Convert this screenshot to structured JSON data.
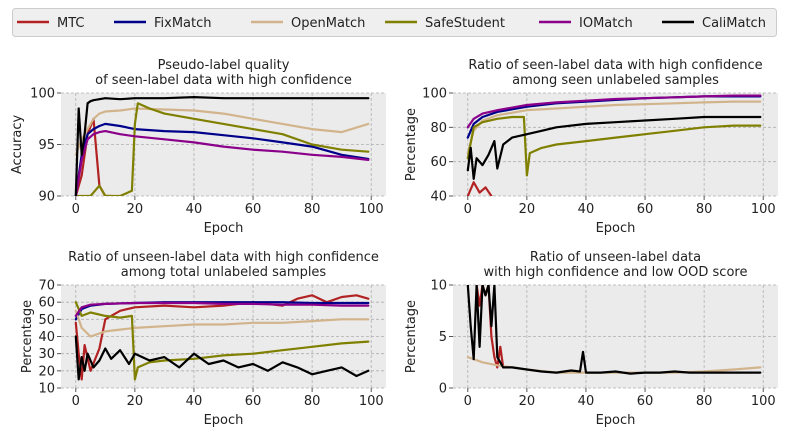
{
  "legend": [
    {
      "name": "MTC",
      "color": "#b22222"
    },
    {
      "name": "FixMatch",
      "color": "#00008b"
    },
    {
      "name": "OpenMatch",
      "color": "#d2b48c"
    },
    {
      "name": "SafeStudent",
      "color": "#808000"
    },
    {
      "name": "IOMatch",
      "color": "#8b008b"
    },
    {
      "name": "CaliMatch",
      "color": "#000000"
    }
  ],
  "chart_data": [
    {
      "type": "line",
      "title": "Pseudo-label quality\nof seen-label data with high confidence",
      "xlabel": "Epoch",
      "ylabel": "Accuracy",
      "xlim": [
        -5,
        105
      ],
      "ylim": [
        90,
        100
      ],
      "xticks": [
        0,
        20,
        40,
        60,
        80,
        100
      ],
      "yticks": [
        90,
        95,
        100
      ],
      "grid": true,
      "series": [
        {
          "name": "MTC",
          "x": [
            0,
            2,
            4,
            6,
            8,
            10,
            12
          ],
          "y": [
            90,
            92,
            96,
            97.5,
            91,
            90,
            90
          ]
        },
        {
          "name": "FixMatch",
          "x": [
            0,
            2,
            4,
            6,
            8,
            10,
            15,
            20,
            30,
            40,
            50,
            60,
            70,
            80,
            90,
            99
          ],
          "y": [
            90,
            94,
            96,
            96.5,
            96.8,
            97,
            96.8,
            96.5,
            96.3,
            96.2,
            95.9,
            95.6,
            95.2,
            94.8,
            94,
            93.6
          ]
        },
        {
          "name": "OpenMatch",
          "x": [
            0,
            2,
            4,
            6,
            8,
            10,
            15,
            20,
            30,
            40,
            50,
            60,
            70,
            80,
            90,
            99
          ],
          "y": [
            94,
            95.5,
            96.5,
            97.5,
            98,
            98.2,
            98.3,
            98.5,
            98.4,
            98.3,
            98,
            97.5,
            97,
            96.5,
            96.2,
            97
          ]
        },
        {
          "name": "SafeStudent",
          "x": [
            0,
            5,
            8,
            10,
            15,
            19,
            20,
            21,
            25,
            30,
            40,
            50,
            60,
            70,
            80,
            90,
            99
          ],
          "y": [
            90,
            90,
            91,
            90,
            90,
            90.5,
            97,
            99,
            98.5,
            98,
            97.5,
            97,
            96.5,
            96,
            95,
            94.5,
            94.3
          ]
        },
        {
          "name": "IOMatch",
          "x": [
            0,
            2,
            4,
            6,
            8,
            10,
            15,
            20,
            30,
            40,
            50,
            60,
            70,
            80,
            90,
            99
          ],
          "y": [
            90,
            93.5,
            95.5,
            96,
            96.2,
            96.3,
            96,
            95.8,
            95.5,
            95.2,
            94.8,
            94.5,
            94.3,
            94,
            93.8,
            93.5
          ]
        },
        {
          "name": "CaliMatch",
          "x": [
            0,
            1,
            2,
            3,
            4,
            5,
            6,
            8,
            10,
            15,
            20,
            30,
            40,
            50,
            60,
            70,
            80,
            90,
            99
          ],
          "y": [
            90,
            98.5,
            94,
            96,
            99,
            99.2,
            99.3,
            99.4,
            99.5,
            99.4,
            99.5,
            99.5,
            99.6,
            99.5,
            99.5,
            99.5,
            99.5,
            99.5,
            99.5
          ]
        }
      ]
    },
    {
      "type": "line",
      "title": "Ratio of seen-label data with high confidence\namong seen unlabeled samples",
      "xlabel": "Epoch",
      "ylabel": "Percentage",
      "xlim": [
        -5,
        105
      ],
      "ylim": [
        40,
        100
      ],
      "xticks": [
        0,
        20,
        40,
        60,
        80,
        100
      ],
      "yticks": [
        40,
        60,
        80,
        100
      ],
      "grid": true,
      "series": [
        {
          "name": "MTC",
          "x": [
            0,
            2,
            4,
            6,
            8
          ],
          "y": [
            40,
            48,
            42,
            45,
            40
          ]
        },
        {
          "name": "FixMatch",
          "x": [
            0,
            2,
            5,
            10,
            20,
            30,
            40,
            50,
            60,
            70,
            80,
            90,
            99
          ],
          "y": [
            74,
            82,
            86,
            89,
            92,
            94,
            95,
            96,
            97,
            97.5,
            98,
            98,
            98
          ]
        },
        {
          "name": "OpenMatch",
          "x": [
            0,
            2,
            5,
            10,
            20,
            30,
            40,
            50,
            60,
            70,
            80,
            90,
            99
          ],
          "y": [
            65,
            78,
            84,
            87,
            90,
            91,
            92,
            93,
            93.5,
            94,
            94.5,
            95,
            95
          ]
        },
        {
          "name": "SafeStudent",
          "x": [
            0,
            2,
            5,
            10,
            15,
            19,
            20,
            21,
            25,
            30,
            40,
            50,
            60,
            70,
            80,
            90,
            99
          ],
          "y": [
            62,
            80,
            83,
            85,
            86,
            86,
            52,
            65,
            68,
            70,
            72,
            74,
            76,
            78,
            80,
            81,
            81
          ]
        },
        {
          "name": "IOMatch",
          "x": [
            0,
            2,
            5,
            10,
            20,
            30,
            40,
            50,
            60,
            70,
            80,
            90,
            99
          ],
          "y": [
            80,
            85,
            88,
            90,
            93,
            94.5,
            95.5,
            96.5,
            97,
            97.5,
            98,
            98.5,
            98.5
          ]
        },
        {
          "name": "CaliMatch",
          "x": [
            0,
            1,
            2,
            3,
            5,
            7,
            9,
            10,
            12,
            15,
            20,
            25,
            30,
            40,
            50,
            60,
            70,
            80,
            90,
            99
          ],
          "y": [
            55,
            68,
            50,
            62,
            58,
            64,
            72,
            56,
            70,
            74,
            76,
            78,
            80,
            82,
            83,
            84,
            85,
            86,
            86,
            86
          ]
        }
      ]
    },
    {
      "type": "line",
      "title": "Ratio of unseen-label data with high confidence\namong total unlabeled samples",
      "xlabel": "Epoch",
      "ylabel": "Percentage",
      "xlim": [
        -5,
        105
      ],
      "ylim": [
        10,
        70
      ],
      "xticks": [
        0,
        20,
        40,
        60,
        80,
        100
      ],
      "yticks": [
        10,
        20,
        30,
        40,
        50,
        60,
        70
      ],
      "grid": true,
      "series": [
        {
          "name": "MTC",
          "x": [
            0,
            1,
            2,
            3,
            5,
            8,
            10,
            15,
            20,
            30,
            40,
            50,
            60,
            70,
            75,
            80,
            85,
            90,
            95,
            99
          ],
          "y": [
            48,
            30,
            15,
            35,
            20,
            33,
            50,
            55,
            57,
            58,
            57,
            58,
            60,
            58,
            62,
            64,
            60,
            63,
            64,
            62
          ]
        },
        {
          "name": "FixMatch",
          "x": [
            0,
            2,
            5,
            10,
            20,
            30,
            40,
            50,
            60,
            70,
            80,
            90,
            99
          ],
          "y": [
            50,
            56,
            58,
            59,
            59.5,
            60,
            60,
            60,
            60,
            60,
            59.5,
            59.5,
            59.5
          ]
        },
        {
          "name": "OpenMatch",
          "x": [
            0,
            2,
            5,
            10,
            15,
            20,
            30,
            40,
            50,
            60,
            70,
            80,
            90,
            99
          ],
          "y": [
            55,
            45,
            40,
            43,
            44,
            45,
            46,
            47,
            47,
            48,
            48,
            49,
            50,
            50
          ]
        },
        {
          "name": "SafeStudent",
          "x": [
            0,
            2,
            5,
            10,
            15,
            19,
            20,
            21,
            25,
            30,
            40,
            50,
            60,
            70,
            80,
            90,
            99
          ],
          "y": [
            60,
            52,
            54,
            52,
            51,
            52,
            15,
            22,
            25,
            26,
            27,
            29,
            30,
            32,
            34,
            36,
            37
          ]
        },
        {
          "name": "IOMatch",
          "x": [
            0,
            2,
            5,
            10,
            20,
            30,
            40,
            50,
            60,
            70,
            80,
            90,
            99
          ],
          "y": [
            52,
            57,
            58.5,
            59,
            59.5,
            59.5,
            59.5,
            59,
            59,
            58.5,
            58.5,
            58,
            58
          ]
        },
        {
          "name": "CaliMatch",
          "x": [
            0,
            1,
            2,
            3,
            4,
            6,
            8,
            10,
            12,
            15,
            18,
            20,
            25,
            30,
            35,
            40,
            45,
            50,
            55,
            60,
            65,
            70,
            75,
            80,
            85,
            90,
            95,
            99
          ],
          "y": [
            40,
            15,
            28,
            20,
            30,
            22,
            26,
            33,
            27,
            32,
            24,
            30,
            26,
            28,
            22,
            30,
            24,
            26,
            22,
            24,
            20,
            25,
            22,
            18,
            20,
            22,
            17,
            20
          ]
        }
      ]
    },
    {
      "type": "line",
      "title": "Ratio of unseen-label data\nwith high confidence and low OOD score",
      "xlabel": "Epoch",
      "ylabel": "Percentage",
      "xlim": [
        -5,
        105
      ],
      "ylim": [
        0,
        10
      ],
      "xticks": [
        0,
        20,
        40,
        60,
        80,
        100
      ],
      "yticks": [
        0,
        5,
        10
      ],
      "grid": true,
      "series": [
        {
          "name": "MTC",
          "x": [
            3,
            4,
            5,
            6,
            7,
            8,
            9,
            10,
            11,
            12
          ],
          "y": [
            10,
            8,
            10,
            9,
            10,
            5,
            3,
            2,
            4,
            2
          ]
        },
        {
          "name": "OpenMatch",
          "x": [
            0,
            5,
            10,
            15,
            20,
            30,
            40,
            50,
            60,
            70,
            80,
            90,
            99
          ],
          "y": [
            3,
            2.5,
            2.2,
            2,
            1.8,
            1.5,
            1.5,
            1.5,
            1.5,
            1.5,
            1.6,
            1.8,
            2
          ]
        },
        {
          "name": "CaliMatch",
          "x": [
            0,
            1,
            2,
            3,
            4,
            5,
            6,
            7,
            8,
            9,
            10,
            12,
            15,
            20,
            25,
            30,
            35,
            38,
            39,
            40,
            41,
            45,
            50,
            55,
            60,
            65,
            70,
            75,
            80,
            85,
            90,
            95,
            99
          ],
          "y": [
            10,
            6,
            2.8,
            10,
            4,
            10,
            9,
            10,
            6,
            10,
            3,
            2,
            2,
            1.8,
            1.6,
            1.5,
            1.7,
            1.6,
            3.5,
            1.5,
            1.5,
            1.5,
            1.6,
            1.4,
            1.5,
            1.5,
            1.6,
            1.5,
            1.5,
            1.5,
            1.5,
            1.5,
            1.5
          ]
        }
      ]
    }
  ]
}
